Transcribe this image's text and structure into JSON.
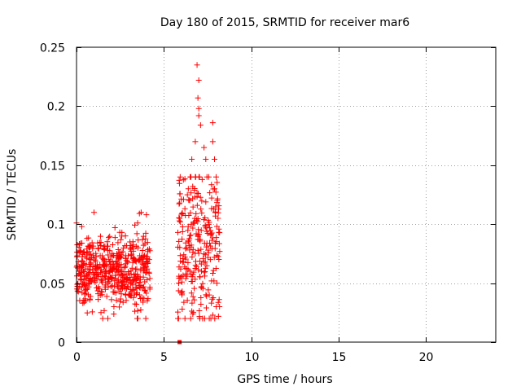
{
  "chart_data": {
    "type": "scatter",
    "title": "Day 180 of 2015, SRMTID for receiver mar6",
    "xlabel": "GPS time / hours",
    "ylabel": "SRMTID / TECUs",
    "xlim": [
      0,
      24
    ],
    "ylim": [
      0,
      0.25
    ],
    "x_ticks": [
      0,
      5,
      10,
      15,
      20
    ],
    "x_tick_labels": [
      "0",
      "5",
      "10",
      "15",
      "20"
    ],
    "y_ticks": [
      0,
      0.05,
      0.1,
      0.15,
      0.2,
      0.25
    ],
    "y_tick_labels": [
      "0",
      "0.05",
      "0.1",
      "0.15",
      "0.2",
      "0.25"
    ],
    "grid": true,
    "marker": "+",
    "series": [
      {
        "name": "SRMTID",
        "color": "#ff0000",
        "clusters": [
          {
            "x_range": [
              0.0,
              4.2
            ],
            "y_range": [
              0.02,
              0.11
            ],
            "y_center": 0.06,
            "count": 520
          },
          {
            "x_range": [
              5.8,
              8.2
            ],
            "y_range": [
              0.02,
              0.24
            ],
            "y_center": 0.08,
            "count": 260
          }
        ],
        "points": [
          [
            0.0,
            0.101
          ],
          [
            0.3,
            0.098
          ],
          [
            0.6,
            0.088
          ],
          [
            1.0,
            0.11
          ],
          [
            1.4,
            0.025
          ],
          [
            1.5,
            0.02
          ],
          [
            2.2,
            0.097
          ],
          [
            2.8,
            0.09
          ],
          [
            3.5,
            0.101
          ],
          [
            3.6,
            0.109
          ],
          [
            3.7,
            0.11
          ],
          [
            4.0,
            0.108
          ],
          [
            4.2,
            0.045
          ],
          [
            5.85,
            0.05
          ],
          [
            5.9,
            0.105
          ],
          [
            5.9,
            0.118
          ],
          [
            6.0,
            0.042
          ],
          [
            6.05,
            0.028
          ],
          [
            6.3,
            0.08
          ],
          [
            6.4,
            0.13
          ],
          [
            6.6,
            0.155
          ],
          [
            6.8,
            0.17
          ],
          [
            6.9,
            0.235
          ],
          [
            7.0,
            0.222
          ],
          [
            6.95,
            0.207
          ],
          [
            7.0,
            0.198
          ],
          [
            7.0,
            0.192
          ],
          [
            7.1,
            0.184
          ],
          [
            7.3,
            0.165
          ],
          [
            7.4,
            0.155
          ],
          [
            7.6,
            0.02
          ],
          [
            7.6,
            0.04
          ],
          [
            7.8,
            0.186
          ],
          [
            7.8,
            0.17
          ],
          [
            7.9,
            0.155
          ],
          [
            7.9,
            0.13
          ],
          [
            8.0,
            0.03
          ],
          [
            8.1,
            0.105
          ]
        ],
        "special_points": [
          {
            "x": 5.9,
            "y": 0.0,
            "marker": "square"
          }
        ]
      }
    ]
  }
}
